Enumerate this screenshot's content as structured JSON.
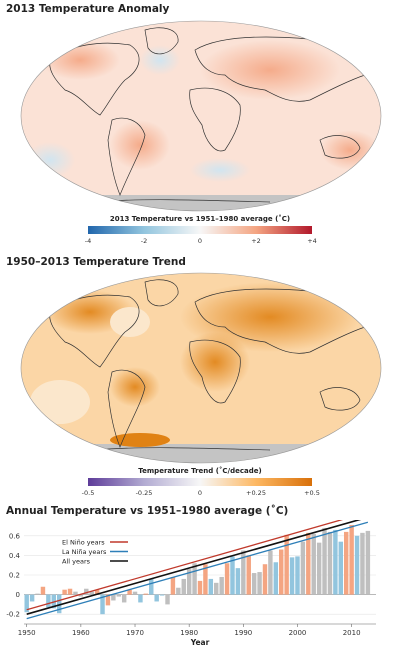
{
  "panel1": {
    "title": "2013 Temperature Anomaly",
    "colorbar_title": "2013 Temperature vs 1951–1980 average (˚C)",
    "colorbar_ticks": [
      "-4",
      "-2",
      "0",
      "+2",
      "+4"
    ],
    "colors": {
      "cold": "#2166ac",
      "mid": "#f7f7f7",
      "warm": "#b2182b"
    }
  },
  "panel2": {
    "title": "1950–2013 Temperature Trend",
    "colorbar_title": "Temperature Trend (˚C/decade)",
    "colorbar_ticks": [
      "-0.5",
      "-0.25",
      "0",
      "+0.25",
      "+0.5"
    ],
    "colors": {
      "cold": "#5e3c99",
      "mid": "#f7f7f7",
      "warm": "#d8700a"
    }
  },
  "chart_data": {
    "type": "bar",
    "title": "Annual Temperature vs 1951–1980 average (˚C)",
    "xlabel": "Year",
    "ylabel": "",
    "xlim": [
      1949.5,
      2014.5
    ],
    "ylim": [
      -0.3,
      0.7
    ],
    "xticks": [
      1950,
      1960,
      1970,
      1980,
      1990,
      2000,
      2010
    ],
    "yticks": [
      -0.2,
      0,
      0.2,
      0.4,
      0.6
    ],
    "ytick_labels": [
      "-0.2",
      "0",
      "0.2",
      "0.4",
      "0.6"
    ],
    "colors": {
      "el_nino": "#f4a582",
      "la_nina": "#92c5de",
      "neutral": "#bfbfbf"
    },
    "years": [
      1950,
      1951,
      1952,
      1953,
      1954,
      1955,
      1956,
      1957,
      1958,
      1959,
      1960,
      1961,
      1962,
      1963,
      1964,
      1965,
      1966,
      1967,
      1968,
      1969,
      1970,
      1971,
      1972,
      1973,
      1974,
      1975,
      1976,
      1977,
      1978,
      1979,
      1980,
      1981,
      1982,
      1983,
      1984,
      1985,
      1986,
      1987,
      1988,
      1989,
      1990,
      1991,
      1992,
      1993,
      1994,
      1995,
      1996,
      1997,
      1998,
      1999,
      2000,
      2001,
      2002,
      2003,
      2004,
      2005,
      2006,
      2007,
      2008,
      2009,
      2010,
      2011,
      2012,
      2013
    ],
    "values": [
      -0.18,
      -0.07,
      0.01,
      0.08,
      -0.13,
      -0.14,
      -0.19,
      0.05,
      0.06,
      0.03,
      -0.02,
      0.06,
      0.03,
      0.05,
      -0.2,
      -0.11,
      -0.06,
      -0.02,
      -0.08,
      0.05,
      0.03,
      -0.08,
      0.01,
      0.16,
      -0.07,
      -0.01,
      -0.1,
      0.18,
      0.07,
      0.16,
      0.26,
      0.32,
      0.14,
      0.31,
      0.16,
      0.12,
      0.18,
      0.32,
      0.39,
      0.27,
      0.45,
      0.4,
      0.22,
      0.23,
      0.31,
      0.45,
      0.33,
      0.46,
      0.61,
      0.38,
      0.39,
      0.54,
      0.63,
      0.62,
      0.53,
      0.68,
      0.64,
      0.66,
      0.54,
      0.64,
      0.71,
      0.6,
      0.63,
      0.65
    ],
    "phase": [
      "LN",
      "LN",
      "N",
      "EN",
      "LN",
      "LN",
      "LN",
      "EN",
      "EN",
      "N",
      "N",
      "N",
      "N",
      "EN",
      "LN",
      "EN",
      "N",
      "N",
      "N",
      "EN",
      "N",
      "LN",
      "EN",
      "LN",
      "LN",
      "LN",
      "N",
      "EN",
      "N",
      "N",
      "N",
      "N",
      "EN",
      "EN",
      "LN",
      "N",
      "N",
      "EN",
      "LN",
      "LN",
      "N",
      "EN",
      "N",
      "N",
      "EN",
      "N",
      "LN",
      "EN",
      "EN",
      "LN",
      "LN",
      "N",
      "EN",
      "N",
      "N",
      "N",
      "N",
      "LN",
      "LN",
      "EN",
      "EN",
      "LN",
      "N",
      "N"
    ],
    "series": [
      {
        "name": "El Niño years",
        "color": "#c0392b",
        "trend": [
          -0.155,
          0.0158
        ]
      },
      {
        "name": "La Niña years",
        "color": "#2e7fb8",
        "trend": [
          -0.245,
          0.0156
        ]
      },
      {
        "name": "All years",
        "color": "#111111",
        "trend": [
          -0.2,
          0.0157
        ]
      }
    ]
  }
}
